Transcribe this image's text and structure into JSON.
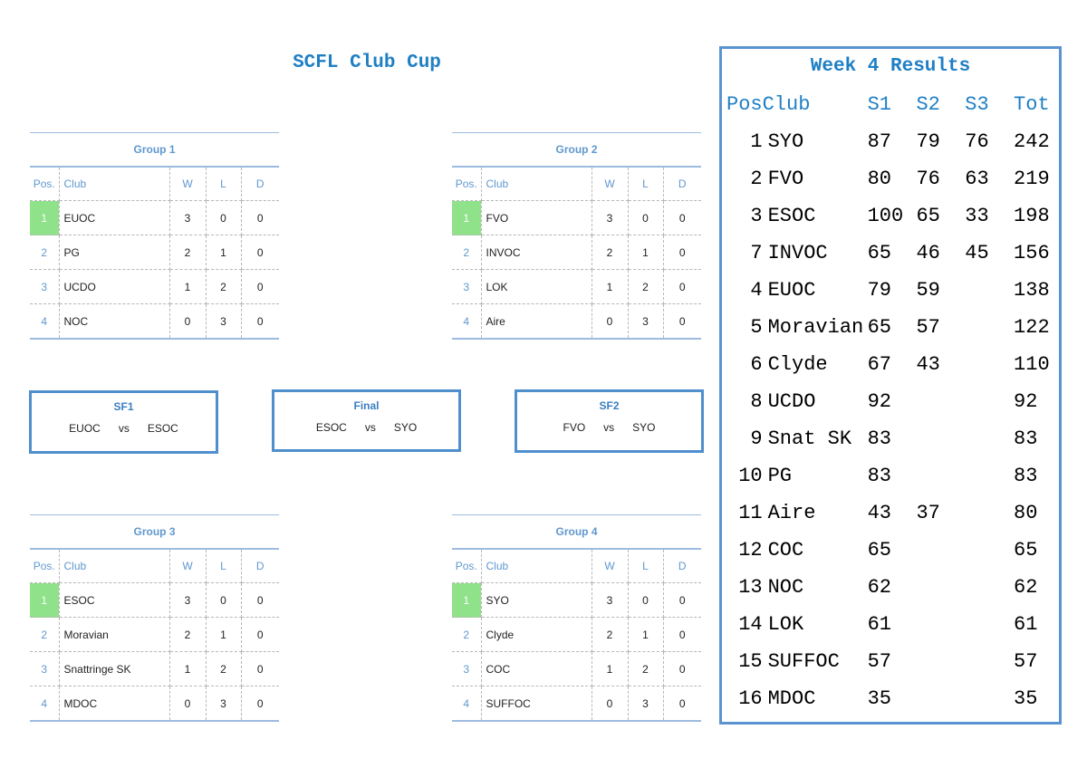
{
  "title": "SCFL Club Cup",
  "group_headers": {
    "pos": "Pos.",
    "club": "Club",
    "w": "W",
    "l": "L",
    "d": "D"
  },
  "groups": [
    {
      "name": "Group 1",
      "rows": [
        {
          "pos": "1",
          "club": "EUOC",
          "w": "3",
          "l": "0",
          "d": "0"
        },
        {
          "pos": "2",
          "club": "PG",
          "w": "2",
          "l": "1",
          "d": "0"
        },
        {
          "pos": "3",
          "club": "UCDO",
          "w": "1",
          "l": "2",
          "d": "0"
        },
        {
          "pos": "4",
          "club": "NOC",
          "w": "0",
          "l": "3",
          "d": "0"
        }
      ]
    },
    {
      "name": "Group 2",
      "rows": [
        {
          "pos": "1",
          "club": "FVO",
          "w": "3",
          "l": "0",
          "d": "0"
        },
        {
          "pos": "2",
          "club": "INVOC",
          "w": "2",
          "l": "1",
          "d": "0"
        },
        {
          "pos": "3",
          "club": "LOK",
          "w": "1",
          "l": "2",
          "d": "0"
        },
        {
          "pos": "4",
          "club": "Aire",
          "w": "0",
          "l": "3",
          "d": "0"
        }
      ]
    },
    {
      "name": "Group 3",
      "rows": [
        {
          "pos": "1",
          "club": "ESOC",
          "w": "3",
          "l": "0",
          "d": "0"
        },
        {
          "pos": "2",
          "club": "Moravian",
          "w": "2",
          "l": "1",
          "d": "0"
        },
        {
          "pos": "3",
          "club": "Snattringe SK",
          "w": "1",
          "l": "2",
          "d": "0"
        },
        {
          "pos": "4",
          "club": "MDOC",
          "w": "0",
          "l": "3",
          "d": "0"
        }
      ]
    },
    {
      "name": "Group 4",
      "rows": [
        {
          "pos": "1",
          "club": "SYO",
          "w": "3",
          "l": "0",
          "d": "0"
        },
        {
          "pos": "2",
          "club": "Clyde",
          "w": "2",
          "l": "1",
          "d": "0"
        },
        {
          "pos": "3",
          "club": "COC",
          "w": "1",
          "l": "2",
          "d": "0"
        },
        {
          "pos": "4",
          "club": "SUFFOC",
          "w": "0",
          "l": "3",
          "d": "0"
        }
      ]
    }
  ],
  "matches": {
    "sf1": {
      "label": "SF1",
      "home": "EUOC",
      "vs": "vs",
      "away": "ESOC"
    },
    "final": {
      "label": "Final",
      "home": "ESOC",
      "vs": "vs",
      "away": "SYO"
    },
    "sf2": {
      "label": "SF2",
      "home": "FVO",
      "vs": "vs",
      "away": "SYO"
    }
  },
  "results": {
    "title": "Week 4 Results",
    "headers": {
      "pos": "Pos",
      "club": "Club",
      "s1": "S1",
      "s2": "S2",
      "s3": "S3",
      "tot": "Tot"
    },
    "rows": [
      {
        "pos": "1",
        "club": "SYO",
        "s1": "87",
        "s2": "79",
        "s3": "76",
        "tot": "242"
      },
      {
        "pos": "2",
        "club": "FVO",
        "s1": "80",
        "s2": "76",
        "s3": "63",
        "tot": "219"
      },
      {
        "pos": "3",
        "club": "ESOC",
        "s1": "100",
        "s2": "65",
        "s3": "33",
        "tot": "198"
      },
      {
        "pos": "7",
        "club": "INVOC",
        "s1": "65",
        "s2": "46",
        "s3": "45",
        "tot": "156"
      },
      {
        "pos": "4",
        "club": "EUOC",
        "s1": "79",
        "s2": "59",
        "s3": "",
        "tot": "138"
      },
      {
        "pos": "5",
        "club": "Moravian",
        "s1": "65",
        "s2": "57",
        "s3": "",
        "tot": "122"
      },
      {
        "pos": "6",
        "club": "Clyde",
        "s1": "67",
        "s2": "43",
        "s3": "",
        "tot": "110"
      },
      {
        "pos": "8",
        "club": "UCDO",
        "s1": "92",
        "s2": "",
        "s3": "",
        "tot": "92"
      },
      {
        "pos": "9",
        "club": "Snat SK",
        "s1": "83",
        "s2": "",
        "s3": "",
        "tot": "83"
      },
      {
        "pos": "10",
        "club": "PG",
        "s1": "83",
        "s2": "",
        "s3": "",
        "tot": "83"
      },
      {
        "pos": "11",
        "club": "Aire",
        "s1": "43",
        "s2": "37",
        "s3": "",
        "tot": "80"
      },
      {
        "pos": "12",
        "club": "COC",
        "s1": "65",
        "s2": "",
        "s3": "",
        "tot": "65"
      },
      {
        "pos": "13",
        "club": "NOC",
        "s1": "62",
        "s2": "",
        "s3": "",
        "tot": "62"
      },
      {
        "pos": "14",
        "club": "LOK",
        "s1": "61",
        "s2": "",
        "s3": "",
        "tot": "61"
      },
      {
        "pos": "15",
        "club": "SUFFOC",
        "s1": "57",
        "s2": "",
        "s3": "",
        "tot": "57"
      },
      {
        "pos": "16",
        "club": "MDOC",
        "s1": "35",
        "s2": "",
        "s3": "",
        "tot": "35"
      }
    ]
  },
  "colors": {
    "accent": "#1f7fc4",
    "border": "#5a94d0",
    "winner": "#8fe28a"
  }
}
